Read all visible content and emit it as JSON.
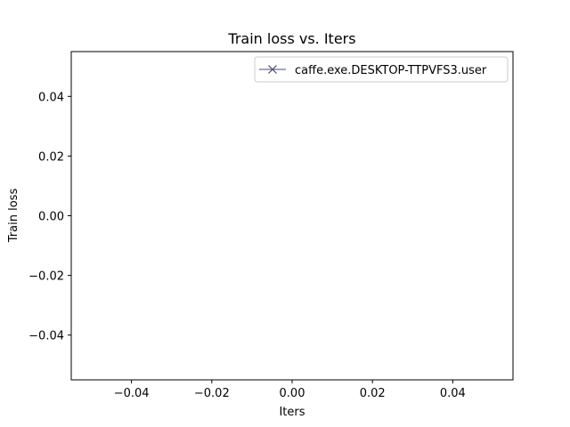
{
  "chart_data": {
    "type": "line",
    "title": "Train loss  vs. Iters",
    "xlabel": "Iters",
    "ylabel": "Train loss",
    "xlim": [
      -0.055,
      0.055
    ],
    "ylim": [
      -0.055,
      0.055
    ],
    "x_ticks": [
      -0.04,
      -0.02,
      0.0,
      0.02,
      0.04
    ],
    "x_tick_labels": [
      "−0.04",
      "−0.02",
      "0.00",
      "0.02",
      "0.04"
    ],
    "y_ticks": [
      -0.04,
      -0.02,
      0.0,
      0.02,
      0.04
    ],
    "y_tick_labels": [
      "−0.04",
      "−0.02",
      "0.00",
      "0.02",
      "0.04"
    ],
    "grid": false,
    "legend_position": "top-right",
    "series": [
      {
        "name": "caffe.exe.DESKTOP-TTPVFS3.user",
        "marker": "x",
        "color": "#4b4b6e",
        "x": [],
        "y": []
      }
    ]
  }
}
